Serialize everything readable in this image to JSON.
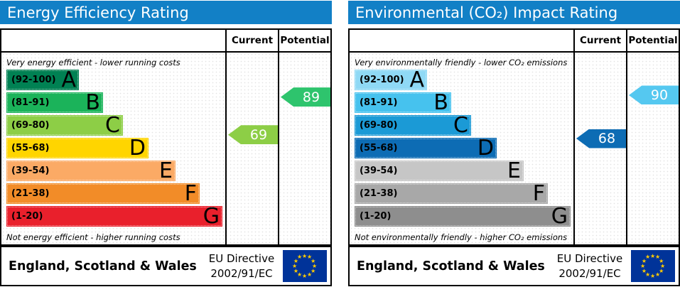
{
  "colors": {
    "title_bg": "#1280c6",
    "flag_bg": "#003399",
    "star": "#ffcc00"
  },
  "panels": [
    {
      "title": "Energy Efficiency Rating",
      "header": {
        "current_label": "Current",
        "potential_label": "Potential"
      },
      "top_note": "Very energy efficient - lower running costs",
      "bottom_note": "Not energy efficient - higher running costs",
      "bands": [
        {
          "range": "(92-100)",
          "letter": "A",
          "min": 92,
          "max": 100,
          "color": "#008153"
        },
        {
          "range": "(81-91)",
          "letter": "B",
          "min": 81,
          "max": 91,
          "color": "#1bb35a"
        },
        {
          "range": "(69-80)",
          "letter": "C",
          "min": 69,
          "max": 80,
          "color": "#8dce46"
        },
        {
          "range": "(55-68)",
          "letter": "D",
          "min": 55,
          "max": 68,
          "color": "#ffd500"
        },
        {
          "range": "(39-54)",
          "letter": "E",
          "min": 39,
          "max": 54,
          "color": "#fbaa65"
        },
        {
          "range": "(21-38)",
          "letter": "F",
          "min": 21,
          "max": 38,
          "color": "#f28c28"
        },
        {
          "range": "(1-20)",
          "letter": "G",
          "min": 1,
          "max": 20,
          "color": "#e9202c"
        }
      ],
      "current": {
        "value": 69,
        "color": "#8dce46"
      },
      "potential": {
        "value": 89,
        "color": "#2ec46d"
      },
      "footer": {
        "region": "England, Scotland & Wales",
        "directive": "EU Directive 2002/91/EC"
      }
    },
    {
      "title": "Environmental (CO₂) Impact Rating",
      "header": {
        "current_label": "Current",
        "potential_label": "Potential"
      },
      "top_note": "Very environmentally friendly - lower CO₂ emissions",
      "bottom_note": "Not environmentally friendly - higher CO₂ emissions",
      "bands": [
        {
          "range": "(92-100)",
          "letter": "A",
          "min": 92,
          "max": 100,
          "color": "#8fd9f5"
        },
        {
          "range": "(81-91)",
          "letter": "B",
          "min": 81,
          "max": 91,
          "color": "#46c2ee"
        },
        {
          "range": "(69-80)",
          "letter": "C",
          "min": 69,
          "max": 80,
          "color": "#1b9ad6"
        },
        {
          "range": "(55-68)",
          "letter": "D",
          "min": 55,
          "max": 68,
          "color": "#0d6cb4"
        },
        {
          "range": "(39-54)",
          "letter": "E",
          "min": 39,
          "max": 54,
          "color": "#c6c6c6"
        },
        {
          "range": "(21-38)",
          "letter": "F",
          "min": 21,
          "max": 38,
          "color": "#a8a8a8"
        },
        {
          "range": "(1-20)",
          "letter": "G",
          "min": 1,
          "max": 20,
          "color": "#8e8e8e"
        }
      ],
      "current": {
        "value": 68,
        "color": "#0d6cb4"
      },
      "potential": {
        "value": 90,
        "color": "#55c8f0"
      },
      "footer": {
        "region": "England, Scotland & Wales",
        "directive": "EU Directive 2002/91/EC"
      }
    }
  ],
  "chart_data": [
    {
      "type": "bar",
      "title": "Energy Efficiency Rating",
      "categories": [
        "A (92-100)",
        "B (81-91)",
        "C (69-80)",
        "D (55-68)",
        "E (39-54)",
        "F (21-38)",
        "G (1-20)"
      ],
      "band_colors": [
        "#008153",
        "#1bb35a",
        "#8dce46",
        "#ffd500",
        "#fbaa65",
        "#f28c28",
        "#e9202c"
      ],
      "current": 69,
      "current_band": "C",
      "potential": 89,
      "potential_band": "B",
      "top_annotation": "Very energy efficient - lower running costs",
      "bottom_annotation": "Not energy efficient - higher running costs",
      "region": "England, Scotland & Wales",
      "directive": "EU Directive 2002/91/EC"
    },
    {
      "type": "bar",
      "title": "Environmental (CO₂) Impact Rating",
      "categories": [
        "A (92-100)",
        "B (81-91)",
        "C (69-80)",
        "D (55-68)",
        "E (39-54)",
        "F (21-38)",
        "G (1-20)"
      ],
      "band_colors": [
        "#8fd9f5",
        "#46c2ee",
        "#1b9ad6",
        "#0d6cb4",
        "#c6c6c6",
        "#a8a8a8",
        "#8e8e8e"
      ],
      "current": 68,
      "current_band": "D",
      "potential": 90,
      "potential_band": "B",
      "top_annotation": "Very environmentally friendly - lower CO₂ emissions",
      "bottom_annotation": "Not environmentally friendly - higher CO₂ emissions",
      "region": "England, Scotland & Wales",
      "directive": "EU Directive 2002/91/EC"
    }
  ]
}
